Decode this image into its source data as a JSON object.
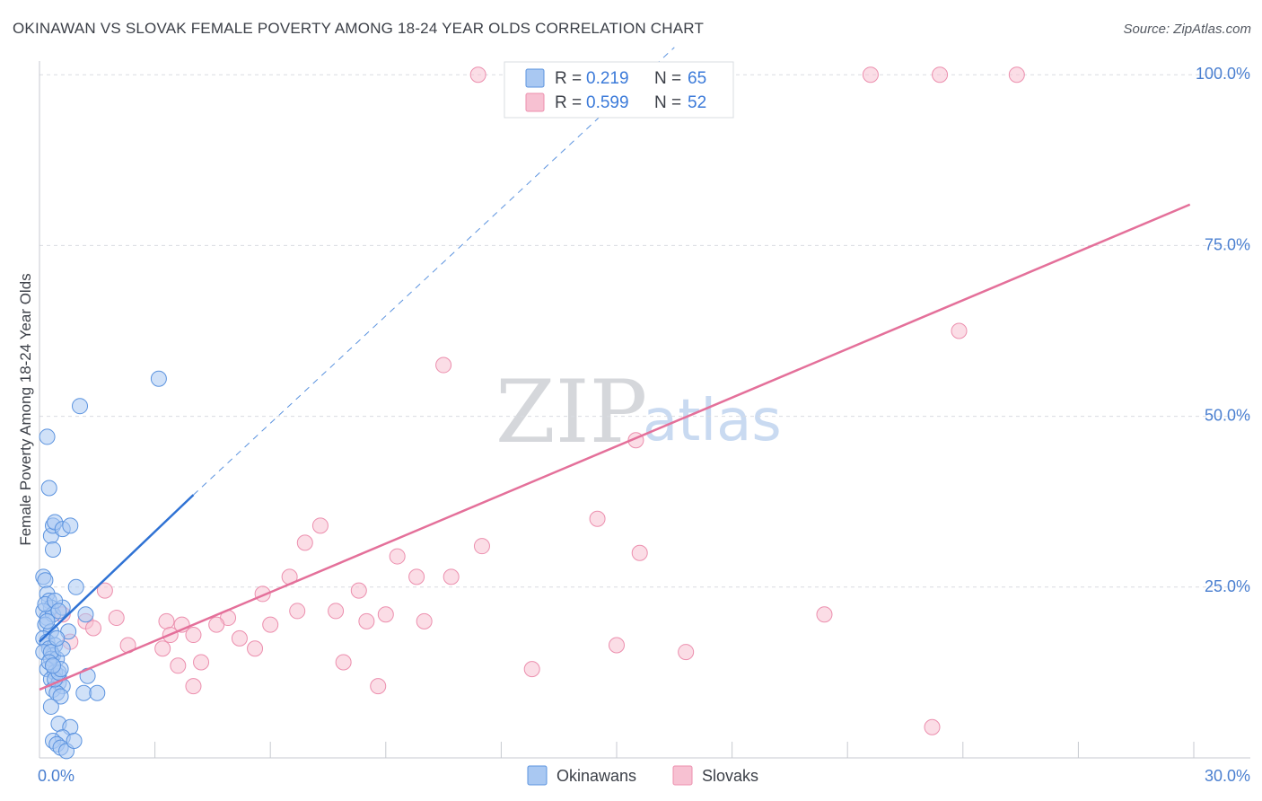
{
  "title": "OKINAWAN VS SLOVAK FEMALE POVERTY AMONG 18-24 YEAR OLDS CORRELATION CHART",
  "source": "Source: ZipAtlas.com",
  "watermark": {
    "zip": "ZIP",
    "atlas": "atlas"
  },
  "colors": {
    "okinawan_fill": "#a9c8f2",
    "okinawan_stroke": "#5b93df",
    "okinawan_line": "#2f72d4",
    "slovak_fill": "#f7c1d2",
    "slovak_stroke": "#ec8fae",
    "slovak_line": "#e4709a",
    "grid": "#d9dce1",
    "tick_text": "#4a7fd0"
  },
  "legend": {
    "r_label": "R =",
    "n_label": "N =",
    "okinawans": {
      "r": "0.219",
      "n": "65"
    },
    "slovaks": {
      "r": "0.599",
      "n": "52"
    }
  },
  "chart_data": {
    "type": "scatter",
    "title": "OKINAWAN VS SLOVAK FEMALE POVERTY AMONG 18-24 YEAR OLDS CORRELATION CHART",
    "xlabel": "",
    "ylabel": "Female Poverty Among 18-24 Year Olds",
    "xlim": [
      0,
      30
    ],
    "ylim": [
      0,
      102
    ],
    "x_tick_labels": [
      "0.0%",
      "30.0%"
    ],
    "y_ticks": [
      {
        "value": 25,
        "label": "25.0%"
      },
      {
        "value": 50,
        "label": "50.0%"
      },
      {
        "value": 75,
        "label": "75.0%"
      },
      {
        "value": 100,
        "label": "100.0%"
      }
    ],
    "grid": true,
    "legend_position": "bottom",
    "series": [
      {
        "name": "Okinawans",
        "r": 0.219,
        "n": 65,
        "trend": {
          "x": [
            0,
            4.0
          ],
          "y": [
            17.0,
            38.5
          ],
          "extend_dashed_to": [
            16.5,
            104
          ]
        },
        "points": [
          [
            0.1,
            26.5
          ],
          [
            0.15,
            26.0
          ],
          [
            0.2,
            24.0
          ],
          [
            0.25,
            23.0
          ],
          [
            0.3,
            22.0
          ],
          [
            0.1,
            21.5
          ],
          [
            0.2,
            20.5
          ],
          [
            0.35,
            21.0
          ],
          [
            0.15,
            19.5
          ],
          [
            0.3,
            18.5
          ],
          [
            0.1,
            17.5
          ],
          [
            0.2,
            17.0
          ],
          [
            0.4,
            16.5
          ],
          [
            0.25,
            16.0
          ],
          [
            0.35,
            15.0
          ],
          [
            0.1,
            15.5
          ],
          [
            0.3,
            14.5
          ],
          [
            0.45,
            14.5
          ],
          [
            0.2,
            13.0
          ],
          [
            0.5,
            12.0
          ],
          [
            0.4,
            12.5
          ],
          [
            0.3,
            11.5
          ],
          [
            0.5,
            11.0
          ],
          [
            0.35,
            10.0
          ],
          [
            0.6,
            10.5
          ],
          [
            0.45,
            9.5
          ],
          [
            0.55,
            9.0
          ],
          [
            0.3,
            7.5
          ],
          [
            0.5,
            5.0
          ],
          [
            0.8,
            4.5
          ],
          [
            0.6,
            3.0
          ],
          [
            0.35,
            2.5
          ],
          [
            0.45,
            2.0
          ],
          [
            0.55,
            1.5
          ],
          [
            0.7,
            1.0
          ],
          [
            0.9,
            2.5
          ],
          [
            0.2,
            47.0
          ],
          [
            0.25,
            39.5
          ],
          [
            0.3,
            32.5
          ],
          [
            0.35,
            30.5
          ],
          [
            0.35,
            34.0
          ],
          [
            0.4,
            34.5
          ],
          [
            0.6,
            33.5
          ],
          [
            0.8,
            34.0
          ],
          [
            0.95,
            25.0
          ],
          [
            1.2,
            21.0
          ],
          [
            0.6,
            22.0
          ],
          [
            0.75,
            18.5
          ],
          [
            1.25,
            12.0
          ],
          [
            1.15,
            9.5
          ],
          [
            1.5,
            9.5
          ],
          [
            0.4,
            11.5
          ],
          [
            0.5,
            12.5
          ],
          [
            0.55,
            13.0
          ],
          [
            0.3,
            15.5
          ],
          [
            0.2,
            20.0
          ],
          [
            0.15,
            22.5
          ],
          [
            0.4,
            23.0
          ],
          [
            0.5,
            21.5
          ],
          [
            0.6,
            16.0
          ],
          [
            0.45,
            17.5
          ],
          [
            0.25,
            14.0
          ],
          [
            0.35,
            13.5
          ],
          [
            1.05,
            51.5
          ],
          [
            3.1,
            55.5
          ]
        ]
      },
      {
        "name": "Slovaks",
        "r": 0.599,
        "n": 52,
        "trend": {
          "x": [
            0,
            29.9
          ],
          "y": [
            10.0,
            81.0
          ]
        },
        "points": [
          [
            11.4,
            100
          ],
          [
            16.6,
            100
          ],
          [
            21.6,
            100
          ],
          [
            23.4,
            100
          ],
          [
            25.4,
            100
          ],
          [
            16.1,
            95.0
          ],
          [
            23.9,
            62.5
          ],
          [
            10.5,
            57.5
          ],
          [
            15.5,
            46.5
          ],
          [
            14.5,
            35.0
          ],
          [
            7.3,
            34.0
          ],
          [
            6.9,
            31.5
          ],
          [
            11.5,
            31.0
          ],
          [
            15.6,
            30.0
          ],
          [
            9.3,
            29.5
          ],
          [
            6.5,
            26.5
          ],
          [
            9.8,
            26.5
          ],
          [
            10.7,
            26.5
          ],
          [
            1.7,
            24.5
          ],
          [
            5.8,
            24.0
          ],
          [
            8.3,
            24.5
          ],
          [
            6.7,
            21.5
          ],
          [
            7.7,
            21.5
          ],
          [
            9.0,
            21.0
          ],
          [
            2.0,
            20.5
          ],
          [
            4.9,
            20.5
          ],
          [
            8.5,
            20.0
          ],
          [
            3.3,
            20.0
          ],
          [
            10.0,
            20.0
          ],
          [
            3.7,
            19.5
          ],
          [
            1.2,
            20.0
          ],
          [
            1.4,
            19.0
          ],
          [
            4.6,
            19.5
          ],
          [
            6.0,
            19.5
          ],
          [
            3.4,
            18.0
          ],
          [
            4.0,
            18.0
          ],
          [
            5.2,
            17.5
          ],
          [
            0.8,
            17.0
          ],
          [
            2.3,
            16.5
          ],
          [
            3.2,
            16.0
          ],
          [
            5.6,
            16.0
          ],
          [
            15.0,
            16.5
          ],
          [
            16.8,
            15.5
          ],
          [
            4.2,
            14.0
          ],
          [
            3.6,
            13.5
          ],
          [
            7.9,
            14.0
          ],
          [
            12.8,
            13.0
          ],
          [
            4.0,
            10.5
          ],
          [
            8.8,
            10.5
          ],
          [
            20.4,
            21.0
          ],
          [
            0.6,
            21.0
          ],
          [
            23.2,
            4.5
          ]
        ]
      }
    ]
  }
}
